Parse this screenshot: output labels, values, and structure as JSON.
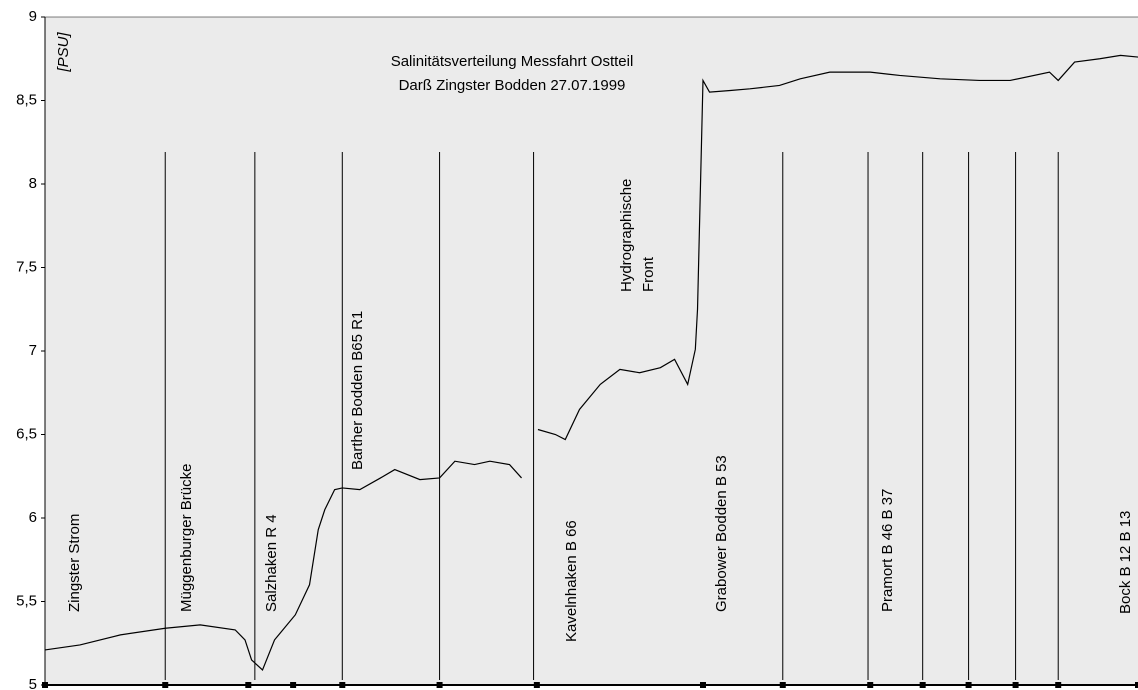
{
  "chart_data": {
    "type": "line",
    "title": "Salinitätsverteilung Messfahrt Ostteil",
    "subtitle": "Darß Zingster Bodden 27.07.1999",
    "y_label": "[PSU]",
    "xlim": [
      0,
      100
    ],
    "ylim": [
      5,
      9
    ],
    "yticks": [
      5,
      {
        "value": 5.5,
        "label": "5,5"
      },
      6,
      {
        "value": 6.5,
        "label": "6,5"
      },
      7,
      {
        "value": 7.5,
        "label": "7,5"
      },
      8,
      {
        "value": 8.5,
        "label": "8,5"
      },
      9
    ],
    "grid": false,
    "color": "#000000",
    "x": [
      0,
      3.2,
      6.9,
      11.0,
      14.2,
      17.4,
      18.3,
      18.9,
      19.9,
      21.0,
      22.9,
      24.2,
      25.0,
      25.6,
      26.5,
      27.2,
      28.8,
      30.7,
      32.0,
      34.3,
      36.1,
      37.5,
      39.3,
      40.7,
      42.5,
      43.6,
      44.4,
      45.1,
      46.7,
      47.6,
      48.9,
      50.8,
      52.6,
      54.4,
      56.3,
      57.6,
      58.8,
      59.5,
      59.7,
      60.2,
      60.8,
      62.7,
      64.5,
      67.2,
      69.1,
      71.8,
      75.5,
      78.2,
      81.9,
      85.5,
      88.3,
      91.9,
      92.7,
      94.2,
      96.5,
      98.4,
      100
    ],
    "values": [
      5.21,
      5.24,
      5.3,
      5.34,
      5.36,
      5.33,
      5.27,
      5.15,
      5.09,
      5.27,
      5.42,
      5.6,
      5.93,
      6.05,
      6.17,
      6.18,
      6.17,
      6.24,
      6.29,
      6.23,
      6.24,
      6.34,
      6.32,
      6.34,
      6.32,
      6.24,
      null,
      6.53,
      6.5,
      6.47,
      6.65,
      6.8,
      6.89,
      6.87,
      6.9,
      6.95,
      6.8,
      7.01,
      7.25,
      8.62,
      8.55,
      8.56,
      8.57,
      8.59,
      8.63,
      8.67,
      8.67,
      8.65,
      8.63,
      8.62,
      8.62,
      8.67,
      8.62,
      8.73,
      8.75,
      8.77,
      8.76
    ],
    "station_lines": [
      11.0,
      19.2,
      27.2,
      36.1,
      44.7,
      67.5,
      75.3,
      80.3,
      84.5,
      88.8,
      92.7
    ],
    "markers": [
      0,
      11.0,
      18.6,
      22.7,
      27.2,
      36.1,
      45.0,
      60.2,
      67.5,
      75.5,
      80.3,
      84.5,
      88.8,
      92.7,
      100
    ],
    "annotations": [
      "Zingster Strom",
      "Müggenburger Brücke",
      "Salzhaken R 4",
      "Barther Bodden  B65 R1",
      "Kavelnhaken B 66",
      "Hydrographische",
      "Front",
      "Grabower Bodden B 53",
      "Pramort B 46 B 37",
      "Bock B  12 B 13"
    ]
  }
}
